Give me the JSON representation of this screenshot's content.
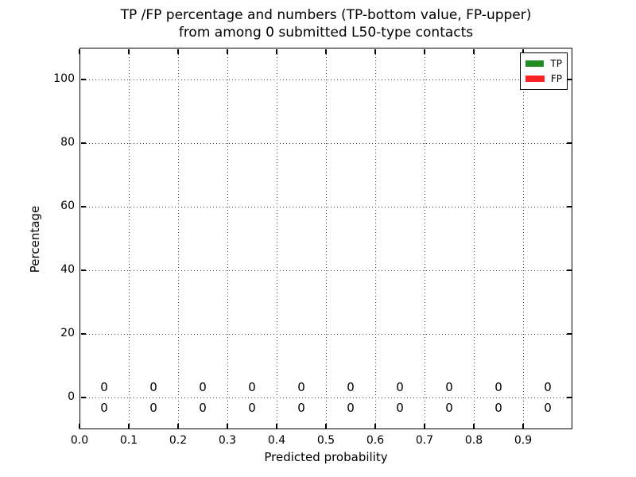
{
  "chart_data": {
    "type": "bar",
    "title_line1": "TP /FP percentage and numbers (TP-bottom value, FP-upper)",
    "title_line2": "from among 0 submitted L50-type contacts",
    "xlabel": "Predicted probability",
    "ylabel": "Percentage",
    "xlim": [
      0.0,
      1.0
    ],
    "ylim": [
      -10,
      110
    ],
    "xtick_labels": [
      "0.0",
      "0.1",
      "0.2",
      "0.3",
      "0.4",
      "0.5",
      "0.6",
      "0.7",
      "0.8",
      "0.9"
    ],
    "ytick_labels": [
      "0",
      "20",
      "40",
      "60",
      "80",
      "100"
    ],
    "grid": "dotted",
    "legend_position": "upper right",
    "categories": [
      0.05,
      0.15,
      0.25,
      0.35,
      0.45,
      0.55,
      0.65,
      0.75,
      0.85,
      0.95
    ],
    "series": [
      {
        "name": "TP",
        "color": "#228B22",
        "values": [
          0,
          0,
          0,
          0,
          0,
          0,
          0,
          0,
          0,
          0
        ],
        "value_label_row": "below-zero-line"
      },
      {
        "name": "FP",
        "color": "#FF2222",
        "values": [
          0,
          0,
          0,
          0,
          0,
          0,
          0,
          0,
          0,
          0
        ],
        "value_label_row": "above-zero-line"
      }
    ],
    "axis_color": "#000000",
    "background": "#FFFFFF"
  }
}
